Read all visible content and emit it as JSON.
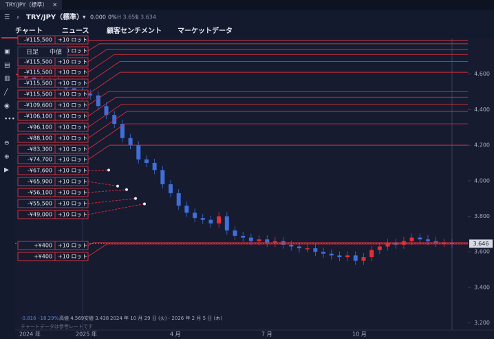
{
  "window_tab": {
    "title": "TRY/JPY（標準）",
    "close": "×"
  },
  "toolbar": {
    "symbol": "TRY/JPY（標準）",
    "change": "0.000",
    "change_pct": "0%",
    "high": "H 3.659",
    "low": "L 3.634"
  },
  "tabs": [
    "チャート",
    "ニュース",
    "顧客センチメント",
    "マーケットデータ"
  ],
  "popup": [
    "日足",
    "中値"
  ],
  "chart_data": {
    "type": "candle-line",
    "values": [
      4.6,
      4.58,
      4.57,
      4.55,
      4.56,
      4.53,
      4.52,
      4.5,
      4.49,
      4.48,
      4.42,
      4.37,
      4.32,
      4.24,
      4.2,
      4.12,
      4.1,
      4.06,
      3.98,
      3.93,
      3.86,
      3.82,
      3.79,
      3.78,
      3.76,
      3.8,
      3.72,
      3.69,
      3.68,
      3.66,
      3.67,
      3.65,
      3.66,
      3.64,
      3.63,
      3.62,
      3.62,
      3.6,
      3.59,
      3.58,
      3.57,
      3.58,
      3.55,
      3.57,
      3.61,
      3.63,
      3.65,
      3.64,
      3.66,
      3.68,
      3.67,
      3.66,
      3.65,
      3.65,
      3.646
    ],
    "up_color": "#e0303a",
    "down_color": "#3f6fd8",
    "ylim": [
      3.16,
      4.8
    ],
    "yticks": [
      {
        "value": 4.6,
        "label": "4.600"
      },
      {
        "value": 4.4,
        "label": "4.400"
      },
      {
        "value": 4.2,
        "label": "4.200"
      },
      {
        "value": 4.0,
        "label": "4.000"
      },
      {
        "value": 3.8,
        "label": "3.800"
      },
      {
        "value": 3.6,
        "label": "3.600"
      },
      {
        "value": 3.4,
        "label": "3.400"
      },
      {
        "value": 3.2,
        "label": "3.200"
      }
    ],
    "last_price": {
      "value": 3.646,
      "label": "3.646"
    },
    "x_labels": [
      "2024 年",
      "2025 年",
      "4 月",
      "7 月",
      "10 月"
    ],
    "order_color": "#d0303a",
    "orders": [
      {
        "pnl": "-¥115,500",
        "lots": "+10 ロット",
        "price": 4.79
      },
      {
        "pnl": "-¥115,500",
        "lots": "+10 ロット",
        "price": 4.77
      },
      {
        "pnl": "-¥115,500",
        "lots": "+10 ロット",
        "price": 4.74
      },
      {
        "pnl": "-¥115,500",
        "lots": "+10 ロット",
        "price": 4.71
      },
      {
        "pnl": "-¥115,500",
        "lots": "+10 ロット",
        "price": 4.67
      },
      {
        "pnl": "-¥115,500",
        "lots": "+10 ロット",
        "price": 4.61
      },
      {
        "pnl": "-¥109,600",
        "lots": "+10 ロット",
        "price": 4.5
      },
      {
        "pnl": "-¥106,100",
        "lots": "+10 ロット",
        "price": 4.47
      },
      {
        "pnl": "-¥96,100",
        "lots": "+10 ロット",
        "price": 4.43
      },
      {
        "pnl": "-¥88,100",
        "lots": "+10 ロット",
        "price": 4.39
      },
      {
        "pnl": "-¥83,300",
        "lots": "+10 ロット",
        "price": 4.32
      },
      {
        "pnl": "-¥74,700",
        "lots": "+10 ロット",
        "price": 4.2
      },
      {
        "pnl": "-¥67,600",
        "lots": "+10 ロット",
        "price": 4.06,
        "line": "dashed"
      },
      {
        "pnl": "-¥65,900",
        "lots": "+10 ロット",
        "price": 3.97,
        "line": "dashed"
      },
      {
        "pnl": "-¥56,100",
        "lots": "+10 ロット",
        "price": 3.95,
        "line": "dashed"
      },
      {
        "pnl": "-¥55,500",
        "lots": "+10 ロット",
        "price": 3.9,
        "line": "dashed"
      },
      {
        "pnl": "-¥49,000",
        "lots": "+10 ロット",
        "price": 3.87,
        "line": "dashed"
      },
      {
        "pnl": "+¥400",
        "lots": "+10 ロット",
        "price": 3.652
      },
      {
        "pnl": "+¥400",
        "lots": "+10 ロット",
        "price": 3.644
      }
    ],
    "stats": {
      "change": "-0.816",
      "change_pct": "-18.29%",
      "high": "高値 4.569",
      "low": "安値 3.438",
      "range": "2024 年 10 月 29 日 (火) - 2026 年 2 月 5 日 (木)"
    },
    "note": "チャートデータは参考レートです"
  }
}
